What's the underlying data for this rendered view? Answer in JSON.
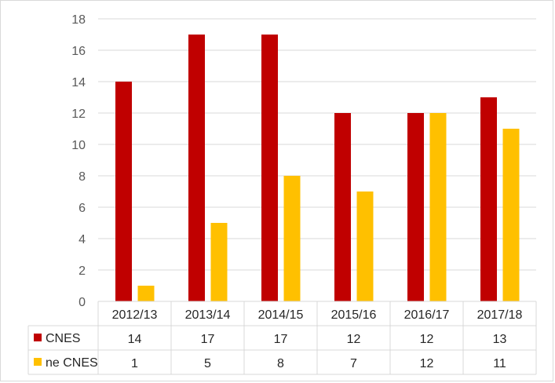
{
  "chart_data": {
    "type": "bar",
    "categories": [
      "2012/13",
      "2013/14",
      "2014/15",
      "2015/16",
      "2016/17",
      "2017/18"
    ],
    "series": [
      {
        "name": "CNES",
        "color": "#c00000",
        "values": [
          14,
          17,
          17,
          12,
          12,
          13
        ]
      },
      {
        "name": "ne CNES",
        "color": "#ffc000",
        "values": [
          1,
          5,
          8,
          7,
          12,
          11
        ]
      }
    ],
    "ylim": [
      0,
      18
    ],
    "yticks": [
      0,
      2,
      4,
      6,
      8,
      10,
      12,
      14,
      16,
      18
    ],
    "grid": true,
    "legend": "data-table",
    "title": "",
    "xlabel": "",
    "ylabel": ""
  }
}
